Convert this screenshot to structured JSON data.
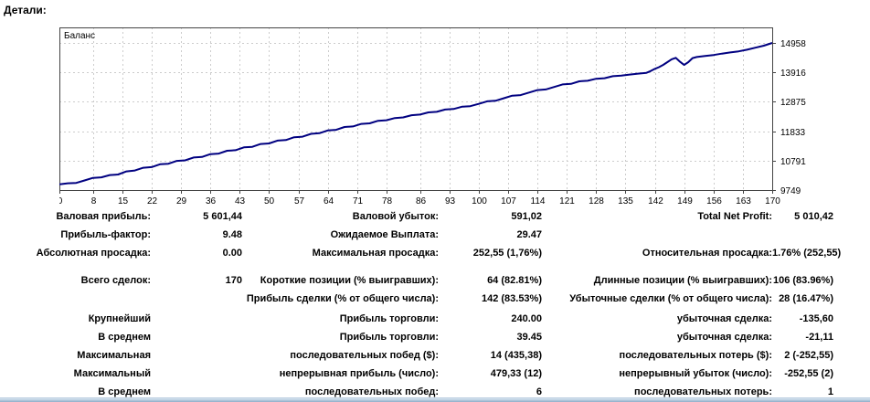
{
  "page": {
    "title": "Детали:"
  },
  "chart_data": {
    "type": "line",
    "title": "Баланс",
    "legend_position": "top-left-inside",
    "y_axis_side": "right",
    "grid": "dashed",
    "line_color": "#000080",
    "grid_color": "#cccccc",
    "axis_color": "#444444",
    "xlim": [
      0,
      170
    ],
    "ylim": [
      9749,
      15508
    ],
    "x_ticks": [
      0,
      8,
      15,
      22,
      29,
      36,
      43,
      50,
      57,
      64,
      71,
      78,
      86,
      93,
      100,
      107,
      114,
      121,
      128,
      135,
      142,
      149,
      156,
      163,
      170
    ],
    "y_ticks": [
      9749,
      10791,
      11833,
      12875,
      13916,
      14958
    ],
    "series": [
      {
        "name": "Баланс",
        "points": [
          [
            0,
            9950
          ],
          [
            2,
            9990
          ],
          [
            4,
            10000
          ],
          [
            6,
            10090
          ],
          [
            8,
            10180
          ],
          [
            10,
            10200
          ],
          [
            12,
            10280
          ],
          [
            14,
            10300
          ],
          [
            16,
            10410
          ],
          [
            18,
            10440
          ],
          [
            20,
            10540
          ],
          [
            22,
            10560
          ],
          [
            24,
            10660
          ],
          [
            26,
            10680
          ],
          [
            28,
            10780
          ],
          [
            30,
            10800
          ],
          [
            32,
            10900
          ],
          [
            34,
            10920
          ],
          [
            36,
            11020
          ],
          [
            38,
            11040
          ],
          [
            40,
            11140
          ],
          [
            42,
            11160
          ],
          [
            44,
            11260
          ],
          [
            46,
            11280
          ],
          [
            48,
            11380
          ],
          [
            50,
            11400
          ],
          [
            52,
            11500
          ],
          [
            54,
            11520
          ],
          [
            56,
            11620
          ],
          [
            58,
            11640
          ],
          [
            60,
            11740
          ],
          [
            62,
            11760
          ],
          [
            64,
            11860
          ],
          [
            66,
            11880
          ],
          [
            68,
            11980
          ],
          [
            70,
            12000
          ],
          [
            72,
            12090
          ],
          [
            74,
            12110
          ],
          [
            76,
            12200
          ],
          [
            78,
            12220
          ],
          [
            80,
            12300
          ],
          [
            82,
            12320
          ],
          [
            84,
            12400
          ],
          [
            86,
            12420
          ],
          [
            88,
            12500
          ],
          [
            90,
            12520
          ],
          [
            92,
            12600
          ],
          [
            94,
            12620
          ],
          [
            96,
            12700
          ],
          [
            98,
            12720
          ],
          [
            100,
            12800
          ],
          [
            102,
            12890
          ],
          [
            104,
            12910
          ],
          [
            106,
            13000
          ],
          [
            108,
            13090
          ],
          [
            110,
            13110
          ],
          [
            112,
            13200
          ],
          [
            114,
            13290
          ],
          [
            116,
            13310
          ],
          [
            118,
            13400
          ],
          [
            120,
            13490
          ],
          [
            122,
            13510
          ],
          [
            124,
            13600
          ],
          [
            126,
            13620
          ],
          [
            128,
            13690
          ],
          [
            130,
            13710
          ],
          [
            132,
            13780
          ],
          [
            134,
            13800
          ],
          [
            136,
            13840
          ],
          [
            138,
            13870
          ],
          [
            140,
            13900
          ],
          [
            141,
            13960
          ],
          [
            142,
            14040
          ],
          [
            143,
            14100
          ],
          [
            144,
            14180
          ],
          [
            145,
            14280
          ],
          [
            146,
            14380
          ],
          [
            147,
            14430
          ],
          [
            148,
            14290
          ],
          [
            149,
            14177
          ],
          [
            150,
            14280
          ],
          [
            151,
            14420
          ],
          [
            152,
            14460
          ],
          [
            154,
            14500
          ],
          [
            156,
            14530
          ],
          [
            158,
            14580
          ],
          [
            160,
            14620
          ],
          [
            162,
            14660
          ],
          [
            164,
            14720
          ],
          [
            166,
            14790
          ],
          [
            168,
            14860
          ],
          [
            170,
            14958
          ]
        ]
      }
    ]
  },
  "stats": {
    "rows": [
      {
        "c1l": "Валовая прибыль:",
        "c1v": "5 601,44",
        "c2l": "Валовой убыток:",
        "c2v": "591,02",
        "c3l": "Total Net Profit:",
        "c3v": "5 010,42"
      },
      {
        "c1l": "Прибыль-фактор:",
        "c1v": "9.48",
        "c2l": "Ожидаемое Выплата:",
        "c2v": "29.47",
        "c3l": "",
        "c3v": ""
      },
      {
        "c1l": "Абсолютная просадка:",
        "c1v": "0.00",
        "c2l": "Максимальная просадка:",
        "c2v": "252,55 (1,76%)",
        "c3l": "Относительная просадка:",
        "c3v": "1.76% (252,55)"
      },
      {
        "c1l": "Всего сделок:",
        "c1v": "170",
        "c2l": "Короткие позиции (% выигравших):",
        "c2v": "64 (82.81%)",
        "c3l": "Длинные позиции (% выигравших):",
        "c3v": "106 (83.96%)"
      },
      {
        "c1l": "",
        "c1v": "",
        "c2l": "Прибыль сделки (% от общего числа):",
        "c2v": "142 (83.53%)",
        "c3l": "Убыточные сделки (% от общего числа):",
        "c3v": "28 (16.47%)"
      },
      {
        "c1l": "Крупнейший",
        "c1v": "",
        "c2l": "Прибыль торговли:",
        "c2v": "240.00",
        "c3l": "убыточная сделка:",
        "c3v": "-135,60"
      },
      {
        "c1l": "В среднем",
        "c1v": "",
        "c2l": "Прибыль торговли:",
        "c2v": "39.45",
        "c3l": "убыточная сделка:",
        "c3v": "-21,11"
      },
      {
        "c1l": "Максимальная",
        "c1v": "",
        "c2l": "последовательных побед ($):",
        "c2v": "14 (435,38)",
        "c3l": "последовательных потерь ($):",
        "c3v": "2 (-252,55)"
      },
      {
        "c1l": "Максимальный",
        "c1v": "",
        "c2l": "непрерывная прибыль (число):",
        "c2v": "479,33 (12)",
        "c3l": "непрерывный убыток (число):",
        "c3v": "-252,55 (2)"
      },
      {
        "c1l": "В среднем",
        "c1v": "",
        "c2l": "последовательных побед:",
        "c2v": "6",
        "c3l": "последовательных потерь:",
        "c3v": "1"
      }
    ]
  }
}
